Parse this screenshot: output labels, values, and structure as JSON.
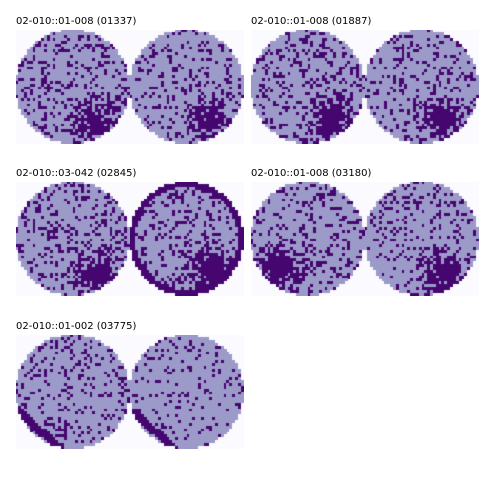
{
  "colors": {
    "background": "#ffffff",
    "tile_background": "#fbfbff",
    "pass_cell": "#9c9ac8",
    "fail_cell": "#45066f"
  },
  "panels": [
    {
      "title": "02-010::01-008 (01337)",
      "maps": [
        {
          "cluster_region": "bottom-right",
          "defect_density": "high"
        },
        {
          "cluster_region": "bottom-right",
          "defect_density": "medium"
        }
      ]
    },
    {
      "title": "02-010::01-008 (01887)",
      "maps": [
        {
          "cluster_region": "bottom-right",
          "defect_density": "high"
        },
        {
          "cluster_region": "bottom-right",
          "defect_density": "medium"
        }
      ]
    },
    {
      "title": "02-010::03-042 (02845)",
      "maps": [
        {
          "cluster_region": "bottom-right",
          "defect_density": "high"
        },
        {
          "cluster_region": "bottom-right-with-edge-ring",
          "defect_density": "high"
        }
      ]
    },
    {
      "title": "02-010::01-008 (03180)",
      "maps": [
        {
          "cluster_region": "bottom-left",
          "defect_density": "high"
        },
        {
          "cluster_region": "bottom-right",
          "defect_density": "medium"
        }
      ]
    },
    {
      "title": "02-010::01-002 (03775)",
      "maps": [
        {
          "cluster_region": "bottom-left-scratch",
          "defect_density": "medium"
        },
        {
          "cluster_region": "bottom-left-scratch",
          "defect_density": "low"
        }
      ]
    }
  ]
}
